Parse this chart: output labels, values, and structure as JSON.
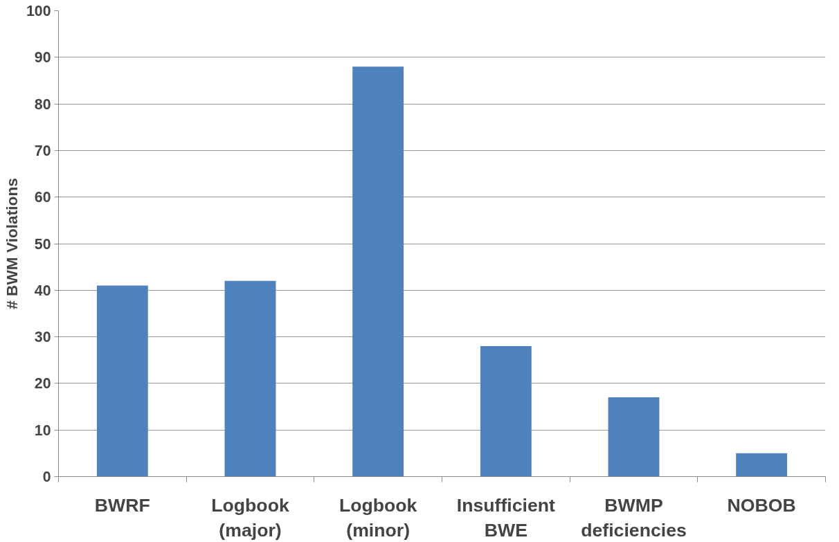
{
  "chart_data": {
    "type": "bar",
    "ylabel": "# BWM Violations",
    "categories": [
      "BWRF",
      "Logbook (major)",
      "Logbook (minor)",
      "Insufficient BWE",
      "BWMP deficiencies",
      "NOBOB"
    ],
    "values": [
      41,
      42,
      88,
      28,
      17,
      5
    ],
    "color": "#4f81bd",
    "ylim": [
      0,
      100
    ],
    "yticks": [
      0,
      10,
      20,
      30,
      40,
      50,
      60,
      70,
      80,
      90,
      100
    ],
    "grid": "y"
  }
}
